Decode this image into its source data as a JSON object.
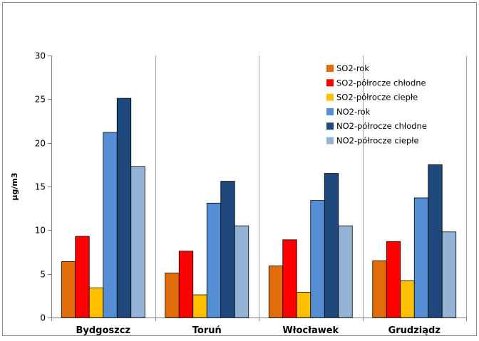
{
  "chart_data": {
    "type": "bar",
    "categories": [
      "Bydgoszcz",
      "Toruń",
      "Włocławek",
      "Grudziądz"
    ],
    "series": [
      {
        "name": "SO2-rok",
        "color": "#E36C0A",
        "values": [
          6.4,
          5.1,
          5.9,
          6.5
        ]
      },
      {
        "name": "SO2-półrocze chłodne",
        "color": "#FF0000",
        "values": [
          9.3,
          7.6,
          8.9,
          8.7
        ]
      },
      {
        "name": "SO2-półrocze ciepłe",
        "color": "#FFC000",
        "values": [
          3.4,
          2.6,
          2.9,
          4.2
        ]
      },
      {
        "name": "NO2-rok",
        "color": "#558ED5",
        "values": [
          21.2,
          13.1,
          13.4,
          13.7
        ]
      },
      {
        "name": "NO2-półrocze chłodne",
        "color": "#1F497D",
        "values": [
          25.1,
          15.6,
          16.5,
          17.5
        ]
      },
      {
        "name": "NO2-półrocze ciepłe",
        "color": "#95B3D7",
        "values": [
          17.3,
          10.5,
          10.5,
          9.8
        ]
      }
    ],
    "ylabel": "µg/m3",
    "ylim": [
      0,
      30
    ],
    "yticks": [
      "0",
      "5",
      "10",
      "15",
      "20",
      "25",
      "30"
    ],
    "grid": "vertical category separators",
    "legend": "top-right inside plot"
  }
}
